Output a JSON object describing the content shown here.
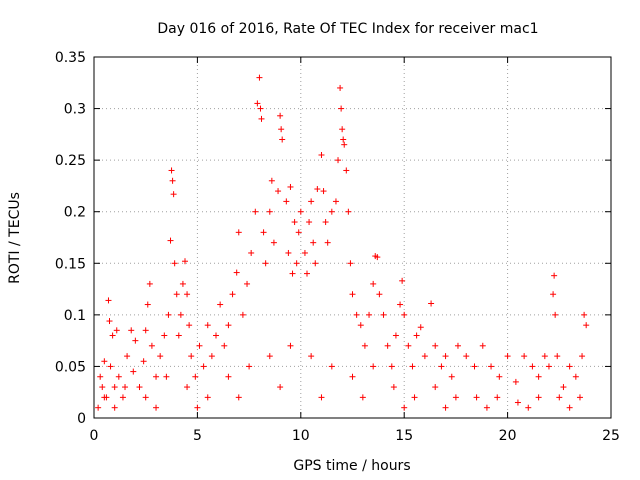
{
  "chart_data": {
    "type": "scatter",
    "title": "Day 016 of 2016, Rate Of TEC Index for receiver mac1",
    "xlabel": "GPS time / hours",
    "ylabel": "ROTI / TECUs",
    "xlim": [
      0,
      25
    ],
    "ylim": [
      0,
      0.35
    ],
    "x_ticks": [
      "0",
      "5",
      "10",
      "15",
      "20",
      "25"
    ],
    "y_ticks": [
      "0",
      "0.05",
      "0.1",
      "0.15",
      "0.2",
      "0.25",
      "0.3",
      "0.35"
    ],
    "grid": true,
    "marker": "+",
    "color": "#ff0000",
    "series": [
      {
        "name": "ROTI",
        "points": [
          [
            0.2,
            0.01
          ],
          [
            0.3,
            0.04
          ],
          [
            0.4,
            0.03
          ],
          [
            0.5,
            0.055
          ],
          [
            0.6,
            0.02
          ],
          [
            0.7,
            0.114
          ],
          [
            0.75,
            0.094
          ],
          [
            0.8,
            0.05
          ],
          [
            0.9,
            0.08
          ],
          [
            1.0,
            0.03
          ],
          [
            1.1,
            0.085
          ],
          [
            1.2,
            0.04
          ],
          [
            1.4,
            0.02
          ],
          [
            1.6,
            0.06
          ],
          [
            1.8,
            0.085
          ],
          [
            1.9,
            0.045
          ],
          [
            2.0,
            0.075
          ],
          [
            2.2,
            0.03
          ],
          [
            2.4,
            0.055
          ],
          [
            2.5,
            0.085
          ],
          [
            2.6,
            0.11
          ],
          [
            2.7,
            0.13
          ],
          [
            2.8,
            0.07
          ],
          [
            3.0,
            0.04
          ],
          [
            3.2,
            0.06
          ],
          [
            3.4,
            0.08
          ],
          [
            3.6,
            0.1
          ],
          [
            3.7,
            0.172
          ],
          [
            3.75,
            0.24
          ],
          [
            3.8,
            0.23
          ],
          [
            3.85,
            0.217
          ],
          [
            3.9,
            0.15
          ],
          [
            4.0,
            0.12
          ],
          [
            4.1,
            0.08
          ],
          [
            4.2,
            0.1
          ],
          [
            4.3,
            0.13
          ],
          [
            4.4,
            0.152
          ],
          [
            4.5,
            0.12
          ],
          [
            4.6,
            0.09
          ],
          [
            4.7,
            0.06
          ],
          [
            4.9,
            0.04
          ],
          [
            5.1,
            0.07
          ],
          [
            5.3,
            0.05
          ],
          [
            5.5,
            0.09
          ],
          [
            5.7,
            0.06
          ],
          [
            5.9,
            0.08
          ],
          [
            6.1,
            0.11
          ],
          [
            6.3,
            0.07
          ],
          [
            6.5,
            0.09
          ],
          [
            6.7,
            0.12
          ],
          [
            6.9,
            0.141
          ],
          [
            7.0,
            0.18
          ],
          [
            7.2,
            0.1
          ],
          [
            7.4,
            0.13
          ],
          [
            7.6,
            0.16
          ],
          [
            7.8,
            0.2
          ],
          [
            7.9,
            0.305
          ],
          [
            8.0,
            0.33
          ],
          [
            8.05,
            0.3
          ],
          [
            8.1,
            0.29
          ],
          [
            8.2,
            0.18
          ],
          [
            8.3,
            0.15
          ],
          [
            8.5,
            0.2
          ],
          [
            8.6,
            0.23
          ],
          [
            8.7,
            0.17
          ],
          [
            8.9,
            0.22
          ],
          [
            9.0,
            0.293
          ],
          [
            9.05,
            0.28
          ],
          [
            9.1,
            0.27
          ],
          [
            9.3,
            0.21
          ],
          [
            9.4,
            0.16
          ],
          [
            9.5,
            0.224
          ],
          [
            9.6,
            0.14
          ],
          [
            9.7,
            0.19
          ],
          [
            9.8,
            0.15
          ],
          [
            9.9,
            0.18
          ],
          [
            10.0,
            0.2
          ],
          [
            10.2,
            0.16
          ],
          [
            10.3,
            0.14
          ],
          [
            10.4,
            0.19
          ],
          [
            10.5,
            0.21
          ],
          [
            10.6,
            0.17
          ],
          [
            10.7,
            0.15
          ],
          [
            10.8,
            0.222
          ],
          [
            11.0,
            0.255
          ],
          [
            11.1,
            0.22
          ],
          [
            11.2,
            0.19
          ],
          [
            11.3,
            0.17
          ],
          [
            11.5,
            0.2
          ],
          [
            11.7,
            0.21
          ],
          [
            11.8,
            0.25
          ],
          [
            11.9,
            0.32
          ],
          [
            11.95,
            0.3
          ],
          [
            12.0,
            0.28
          ],
          [
            12.05,
            0.27
          ],
          [
            12.1,
            0.265
          ],
          [
            12.2,
            0.24
          ],
          [
            12.3,
            0.2
          ],
          [
            12.4,
            0.15
          ],
          [
            12.5,
            0.12
          ],
          [
            12.7,
            0.1
          ],
          [
            12.9,
            0.09
          ],
          [
            13.1,
            0.07
          ],
          [
            13.3,
            0.1
          ],
          [
            13.5,
            0.13
          ],
          [
            13.6,
            0.157
          ],
          [
            13.7,
            0.156
          ],
          [
            13.8,
            0.12
          ],
          [
            14.0,
            0.1
          ],
          [
            14.2,
            0.07
          ],
          [
            14.4,
            0.05
          ],
          [
            14.6,
            0.08
          ],
          [
            14.8,
            0.11
          ],
          [
            14.9,
            0.133
          ],
          [
            15.0,
            0.1
          ],
          [
            15.2,
            0.07
          ],
          [
            15.4,
            0.05
          ],
          [
            15.6,
            0.08
          ],
          [
            15.8,
            0.088
          ],
          [
            16.0,
            0.06
          ],
          [
            16.3,
            0.111
          ],
          [
            16.5,
            0.07
          ],
          [
            16.8,
            0.05
          ],
          [
            17.0,
            0.06
          ],
          [
            17.3,
            0.04
          ],
          [
            17.6,
            0.07
          ],
          [
            18.0,
            0.06
          ],
          [
            18.4,
            0.05
          ],
          [
            18.8,
            0.07
          ],
          [
            19.2,
            0.05
          ],
          [
            19.6,
            0.04
          ],
          [
            20.0,
            0.06
          ],
          [
            20.4,
            0.035
          ],
          [
            20.8,
            0.06
          ],
          [
            21.2,
            0.05
          ],
          [
            21.5,
            0.04
          ],
          [
            21.8,
            0.06
          ],
          [
            22.0,
            0.05
          ],
          [
            22.2,
            0.12
          ],
          [
            22.25,
            0.138
          ],
          [
            22.3,
            0.1
          ],
          [
            22.4,
            0.06
          ],
          [
            22.7,
            0.03
          ],
          [
            23.0,
            0.05
          ],
          [
            23.3,
            0.04
          ],
          [
            23.6,
            0.06
          ],
          [
            23.7,
            0.1
          ],
          [
            23.8,
            0.09
          ],
          [
            0.5,
            0.02
          ],
          [
            1.5,
            0.03
          ],
          [
            2.5,
            0.02
          ],
          [
            3.5,
            0.04
          ],
          [
            4.5,
            0.03
          ],
          [
            5.5,
            0.02
          ],
          [
            6.5,
            0.04
          ],
          [
            7.5,
            0.05
          ],
          [
            8.5,
            0.06
          ],
          [
            9.5,
            0.07
          ],
          [
            10.5,
            0.06
          ],
          [
            11.5,
            0.05
          ],
          [
            12.5,
            0.04
          ],
          [
            13.5,
            0.05
          ],
          [
            14.5,
            0.03
          ],
          [
            15.5,
            0.02
          ],
          [
            16.5,
            0.03
          ],
          [
            17.5,
            0.02
          ],
          [
            18.5,
            0.02
          ],
          [
            19.5,
            0.02
          ],
          [
            20.5,
            0.015
          ],
          [
            21.5,
            0.02
          ],
          [
            22.5,
            0.02
          ],
          [
            23.5,
            0.02
          ],
          [
            1.0,
            0.01
          ],
          [
            3.0,
            0.01
          ],
          [
            5.0,
            0.01
          ],
          [
            7.0,
            0.02
          ],
          [
            9.0,
            0.03
          ],
          [
            11.0,
            0.02
          ],
          [
            13.0,
            0.02
          ],
          [
            15.0,
            0.01
          ],
          [
            17.0,
            0.01
          ],
          [
            19.0,
            0.01
          ],
          [
            21.0,
            0.01
          ],
          [
            23.0,
            0.01
          ]
        ]
      }
    ]
  }
}
